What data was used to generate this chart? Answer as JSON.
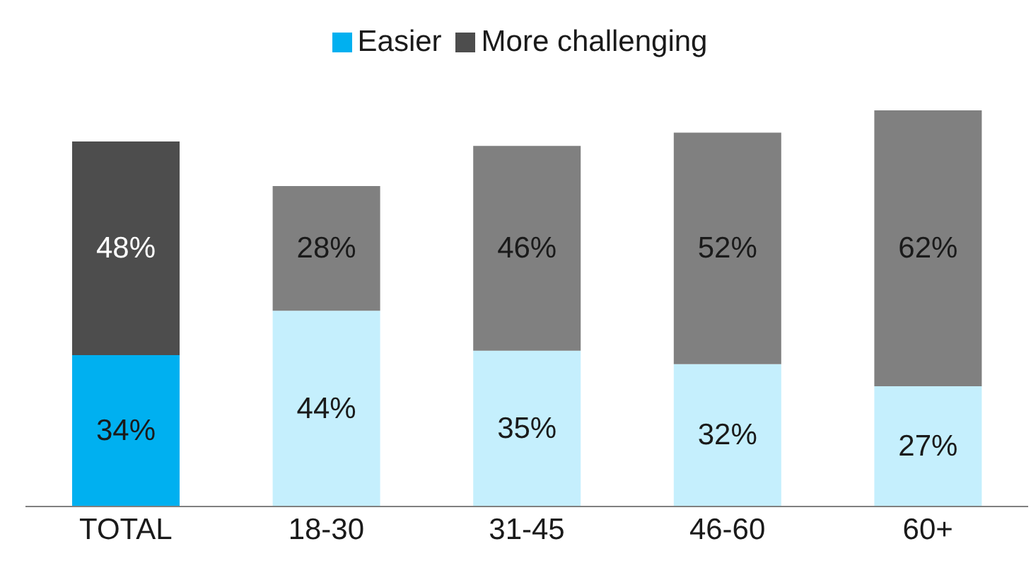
{
  "chart_data": {
    "type": "bar",
    "stacked": true,
    "categories": [
      "TOTAL",
      "18-30",
      "31-45",
      "46-60",
      "60+"
    ],
    "series": [
      {
        "name": "Easier",
        "color": "#00b0f0",
        "colors": [
          "#00b0f0",
          "#c5effd",
          "#c5effd",
          "#c5effd",
          "#c5effd"
        ],
        "values": [
          34,
          44,
          35,
          32,
          27
        ],
        "value_labels": [
          "34%",
          "44%",
          "35%",
          "32%",
          "27%"
        ]
      },
      {
        "name": "More challenging",
        "color": "#4d4d4d",
        "colors": [
          "#4d4d4d",
          "#808080",
          "#808080",
          "#808080",
          "#808080"
        ],
        "values": [
          48,
          28,
          46,
          52,
          62
        ],
        "value_labels": [
          "48%",
          "28%",
          "46%",
          "52%",
          "62%"
        ]
      }
    ],
    "legend": "top"
  }
}
